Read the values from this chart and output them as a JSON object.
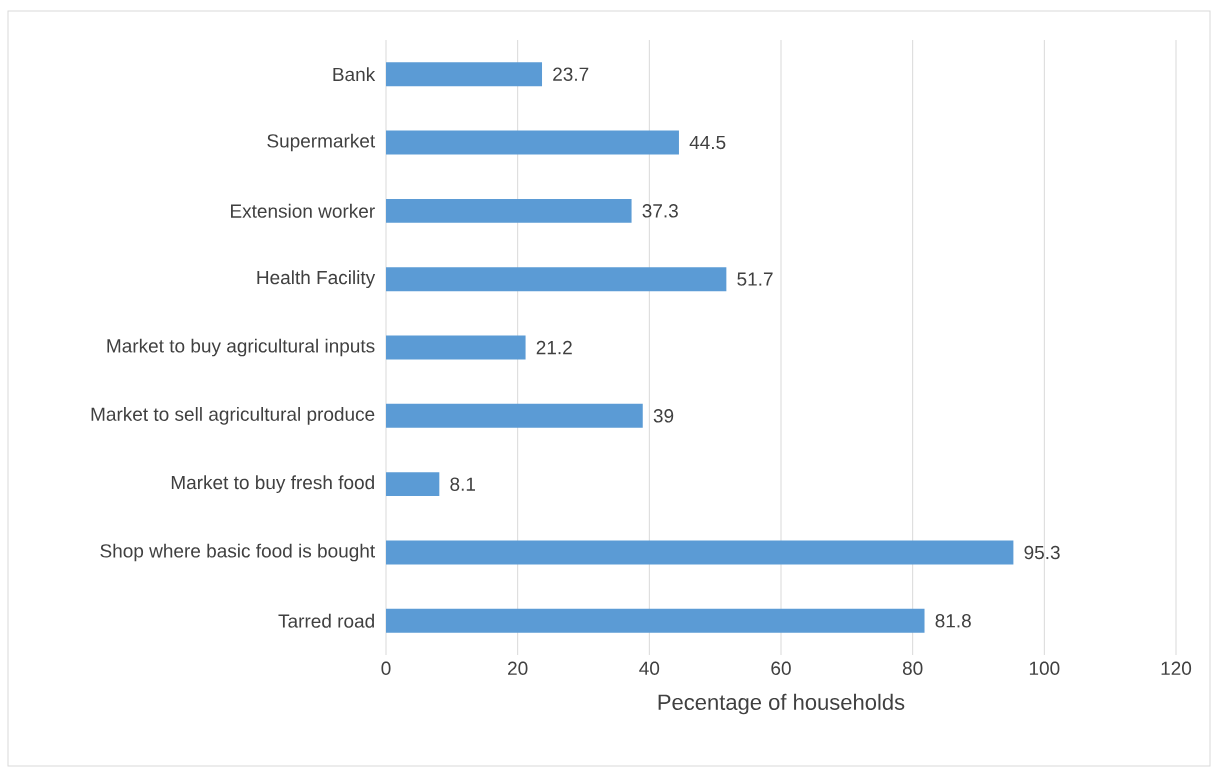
{
  "chart_data": {
    "type": "bar",
    "orientation": "horizontal",
    "categories": [
      "Bank",
      "Supermarket",
      "Extension worker",
      "Health Facility",
      "Market to buy agricultural inputs",
      "Market to sell agricultural produce",
      "Market to buy fresh food",
      "Shop where basic food is bought",
      "Tarred road"
    ],
    "values": [
      23.7,
      44.5,
      37.3,
      51.7,
      21.2,
      39,
      8.1,
      95.3,
      81.8
    ],
    "color": "#5b9bd5",
    "xlim": [
      0,
      120
    ],
    "xticks": [
      0,
      20,
      40,
      60,
      80,
      100,
      120
    ],
    "xlabel": "Pecentage of households",
    "grid": "x",
    "data_labels": true
  }
}
